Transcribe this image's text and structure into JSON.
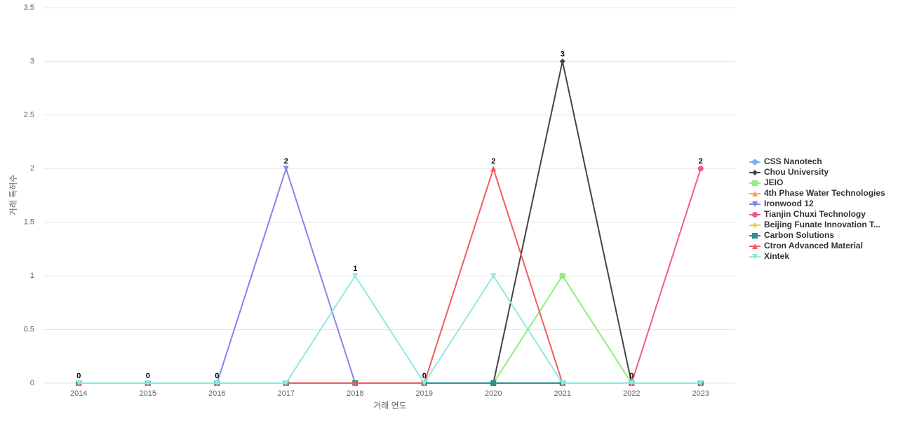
{
  "chart_data": {
    "type": "line",
    "x_label": "거래 연도",
    "y_label": "거래 특허수",
    "categories": [
      "2014",
      "2015",
      "2016",
      "2017",
      "2018",
      "2019",
      "2020",
      "2021",
      "2022",
      "2023"
    ],
    "ylim": [
      0,
      3.5
    ],
    "yticks": [
      0,
      0.5,
      1,
      1.5,
      2,
      2.5,
      3,
      3.5
    ],
    "grid": true,
    "series": [
      {
        "name": "CSS Nanotech",
        "color": "#7cb5ec",
        "marker": "circle",
        "values": [
          0,
          0,
          0,
          0,
          0,
          0,
          0,
          0,
          0,
          0
        ]
      },
      {
        "name": "Chou University",
        "color": "#434348",
        "marker": "diamond",
        "values": [
          0,
          0,
          0,
          0,
          0,
          0,
          0,
          3,
          0,
          0
        ]
      },
      {
        "name": "JEIO",
        "color": "#90ed7d",
        "marker": "square",
        "values": [
          0,
          0,
          0,
          0,
          0,
          0,
          0,
          1,
          0,
          0
        ]
      },
      {
        "name": "4th Phase Water Technologies",
        "color": "#f7a35c",
        "marker": "triangle",
        "values": [
          0,
          0,
          0,
          0,
          0,
          0,
          0,
          0,
          0,
          0
        ]
      },
      {
        "name": "Ironwood 12",
        "color": "#8085e9",
        "marker": "triangle-down",
        "values": [
          0,
          0,
          0,
          2,
          0,
          0,
          0,
          0,
          0,
          0
        ]
      },
      {
        "name": "Tianjin Chuxi Technology",
        "color": "#f15c80",
        "marker": "circle",
        "values": [
          0,
          0,
          0,
          0,
          0,
          0,
          0,
          0,
          0,
          2
        ]
      },
      {
        "name": "Beijing Funate Innovation T...",
        "color": "#e4d354",
        "marker": "diamond",
        "values": [
          0,
          0,
          0,
          0,
          0,
          0,
          0,
          0,
          0,
          0
        ]
      },
      {
        "name": "Carbon Solutions",
        "color": "#2b908f",
        "marker": "square",
        "values": [
          0,
          0,
          0,
          0,
          0,
          0,
          0,
          0,
          0,
          0
        ]
      },
      {
        "name": "Ctron Advanced Material",
        "color": "#f45b5b",
        "marker": "triangle",
        "values": [
          0,
          0,
          0,
          0,
          0,
          0,
          2,
          0,
          0,
          0
        ]
      },
      {
        "name": "Xintek",
        "color": "#91e8e1",
        "marker": "triangle-down",
        "values": [
          0,
          0,
          0,
          0,
          1,
          0,
          1,
          0,
          0,
          0
        ]
      }
    ]
  }
}
